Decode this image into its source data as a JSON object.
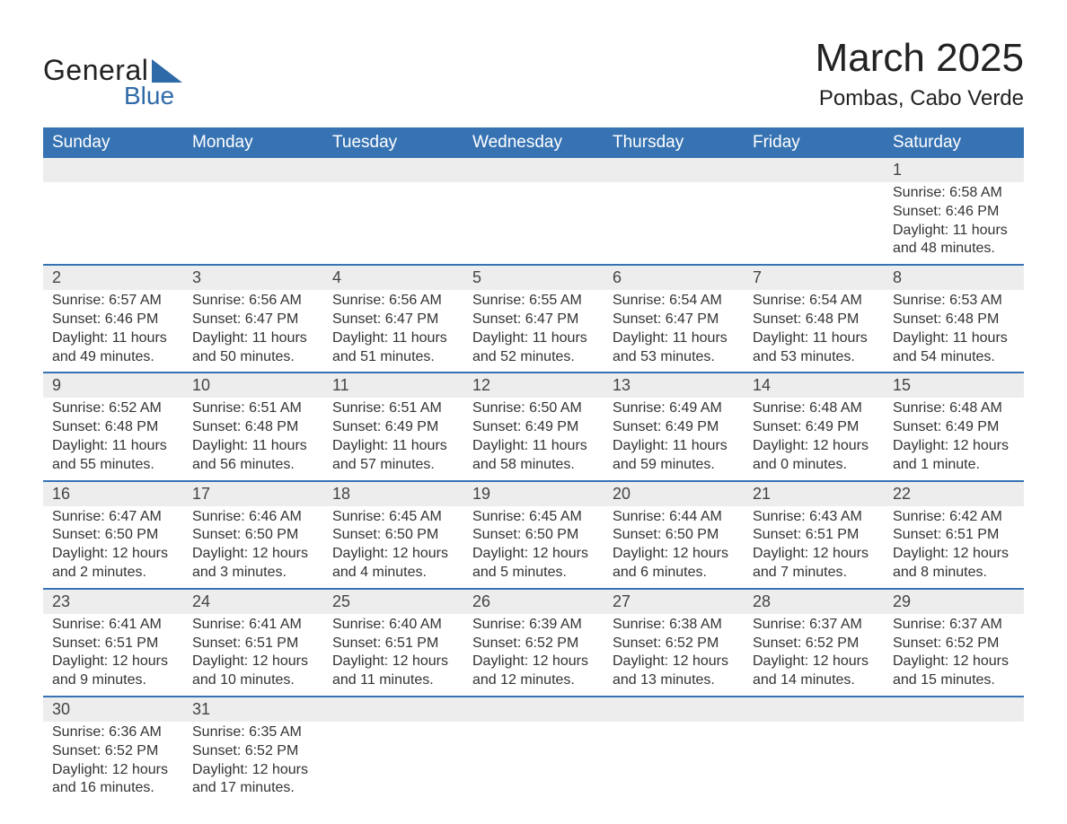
{
  "brand": {
    "part1": "General",
    "part2": "Blue",
    "color_text": "#222222",
    "color_blue": "#2f6aa8"
  },
  "title": "March 2025",
  "location": "Pombas, Cabo Verde",
  "header_bg": "#3773b3",
  "header_text_color": "#ffffff",
  "daynum_bg": "#ededed",
  "row_border_color": "#3773b3",
  "body_text_color": "#333333",
  "font_family": "Arial",
  "day_labels": [
    "Sunday",
    "Monday",
    "Tuesday",
    "Wednesday",
    "Thursday",
    "Friday",
    "Saturday"
  ],
  "weeks": [
    [
      null,
      null,
      null,
      null,
      null,
      null,
      {
        "n": "1",
        "sunrise": "Sunrise: 6:58 AM",
        "sunset": "Sunset: 6:46 PM",
        "day": "Daylight: 11 hours and 48 minutes."
      }
    ],
    [
      {
        "n": "2",
        "sunrise": "Sunrise: 6:57 AM",
        "sunset": "Sunset: 6:46 PM",
        "day": "Daylight: 11 hours and 49 minutes."
      },
      {
        "n": "3",
        "sunrise": "Sunrise: 6:56 AM",
        "sunset": "Sunset: 6:47 PM",
        "day": "Daylight: 11 hours and 50 minutes."
      },
      {
        "n": "4",
        "sunrise": "Sunrise: 6:56 AM",
        "sunset": "Sunset: 6:47 PM",
        "day": "Daylight: 11 hours and 51 minutes."
      },
      {
        "n": "5",
        "sunrise": "Sunrise: 6:55 AM",
        "sunset": "Sunset: 6:47 PM",
        "day": "Daylight: 11 hours and 52 minutes."
      },
      {
        "n": "6",
        "sunrise": "Sunrise: 6:54 AM",
        "sunset": "Sunset: 6:47 PM",
        "day": "Daylight: 11 hours and 53 minutes."
      },
      {
        "n": "7",
        "sunrise": "Sunrise: 6:54 AM",
        "sunset": "Sunset: 6:48 PM",
        "day": "Daylight: 11 hours and 53 minutes."
      },
      {
        "n": "8",
        "sunrise": "Sunrise: 6:53 AM",
        "sunset": "Sunset: 6:48 PM",
        "day": "Daylight: 11 hours and 54 minutes."
      }
    ],
    [
      {
        "n": "9",
        "sunrise": "Sunrise: 6:52 AM",
        "sunset": "Sunset: 6:48 PM",
        "day": "Daylight: 11 hours and 55 minutes."
      },
      {
        "n": "10",
        "sunrise": "Sunrise: 6:51 AM",
        "sunset": "Sunset: 6:48 PM",
        "day": "Daylight: 11 hours and 56 minutes."
      },
      {
        "n": "11",
        "sunrise": "Sunrise: 6:51 AM",
        "sunset": "Sunset: 6:49 PM",
        "day": "Daylight: 11 hours and 57 minutes."
      },
      {
        "n": "12",
        "sunrise": "Sunrise: 6:50 AM",
        "sunset": "Sunset: 6:49 PM",
        "day": "Daylight: 11 hours and 58 minutes."
      },
      {
        "n": "13",
        "sunrise": "Sunrise: 6:49 AM",
        "sunset": "Sunset: 6:49 PM",
        "day": "Daylight: 11 hours and 59 minutes."
      },
      {
        "n": "14",
        "sunrise": "Sunrise: 6:48 AM",
        "sunset": "Sunset: 6:49 PM",
        "day": "Daylight: 12 hours and 0 minutes."
      },
      {
        "n": "15",
        "sunrise": "Sunrise: 6:48 AM",
        "sunset": "Sunset: 6:49 PM",
        "day": "Daylight: 12 hours and 1 minute."
      }
    ],
    [
      {
        "n": "16",
        "sunrise": "Sunrise: 6:47 AM",
        "sunset": "Sunset: 6:50 PM",
        "day": "Daylight: 12 hours and 2 minutes."
      },
      {
        "n": "17",
        "sunrise": "Sunrise: 6:46 AM",
        "sunset": "Sunset: 6:50 PM",
        "day": "Daylight: 12 hours and 3 minutes."
      },
      {
        "n": "18",
        "sunrise": "Sunrise: 6:45 AM",
        "sunset": "Sunset: 6:50 PM",
        "day": "Daylight: 12 hours and 4 minutes."
      },
      {
        "n": "19",
        "sunrise": "Sunrise: 6:45 AM",
        "sunset": "Sunset: 6:50 PM",
        "day": "Daylight: 12 hours and 5 minutes."
      },
      {
        "n": "20",
        "sunrise": "Sunrise: 6:44 AM",
        "sunset": "Sunset: 6:50 PM",
        "day": "Daylight: 12 hours and 6 minutes."
      },
      {
        "n": "21",
        "sunrise": "Sunrise: 6:43 AM",
        "sunset": "Sunset: 6:51 PM",
        "day": "Daylight: 12 hours and 7 minutes."
      },
      {
        "n": "22",
        "sunrise": "Sunrise: 6:42 AM",
        "sunset": "Sunset: 6:51 PM",
        "day": "Daylight: 12 hours and 8 minutes."
      }
    ],
    [
      {
        "n": "23",
        "sunrise": "Sunrise: 6:41 AM",
        "sunset": "Sunset: 6:51 PM",
        "day": "Daylight: 12 hours and 9 minutes."
      },
      {
        "n": "24",
        "sunrise": "Sunrise: 6:41 AM",
        "sunset": "Sunset: 6:51 PM",
        "day": "Daylight: 12 hours and 10 minutes."
      },
      {
        "n": "25",
        "sunrise": "Sunrise: 6:40 AM",
        "sunset": "Sunset: 6:51 PM",
        "day": "Daylight: 12 hours and 11 minutes."
      },
      {
        "n": "26",
        "sunrise": "Sunrise: 6:39 AM",
        "sunset": "Sunset: 6:52 PM",
        "day": "Daylight: 12 hours and 12 minutes."
      },
      {
        "n": "27",
        "sunrise": "Sunrise: 6:38 AM",
        "sunset": "Sunset: 6:52 PM",
        "day": "Daylight: 12 hours and 13 minutes."
      },
      {
        "n": "28",
        "sunrise": "Sunrise: 6:37 AM",
        "sunset": "Sunset: 6:52 PM",
        "day": "Daylight: 12 hours and 14 minutes."
      },
      {
        "n": "29",
        "sunrise": "Sunrise: 6:37 AM",
        "sunset": "Sunset: 6:52 PM",
        "day": "Daylight: 12 hours and 15 minutes."
      }
    ],
    [
      {
        "n": "30",
        "sunrise": "Sunrise: 6:36 AM",
        "sunset": "Sunset: 6:52 PM",
        "day": "Daylight: 12 hours and 16 minutes."
      },
      {
        "n": "31",
        "sunrise": "Sunrise: 6:35 AM",
        "sunset": "Sunset: 6:52 PM",
        "day": "Daylight: 12 hours and 17 minutes."
      },
      null,
      null,
      null,
      null,
      null
    ]
  ]
}
